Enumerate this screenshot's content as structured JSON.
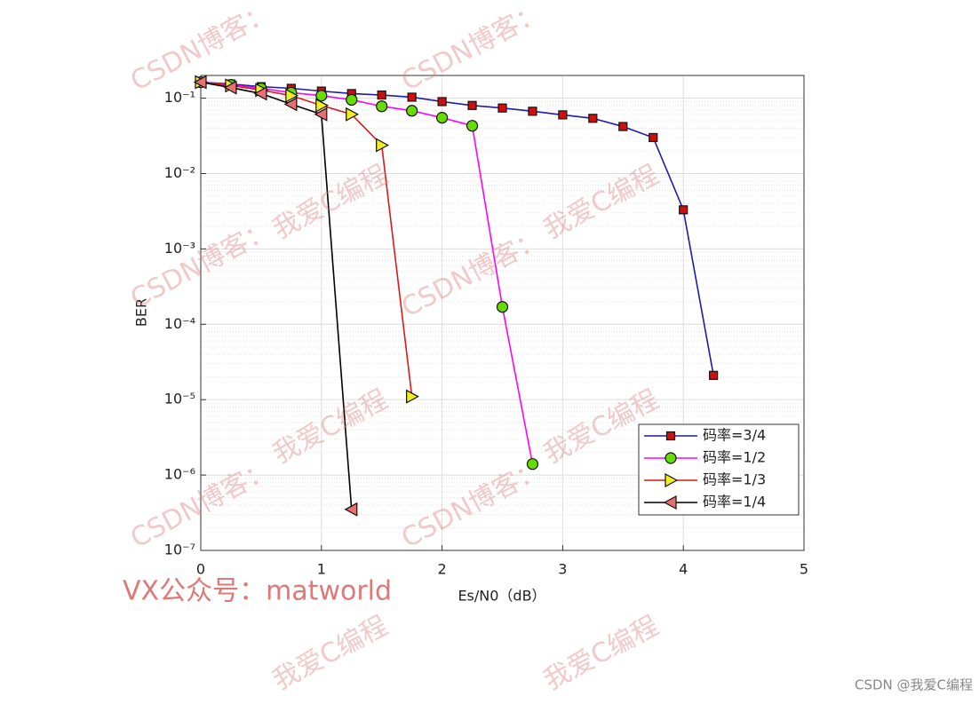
{
  "chart_data": {
    "type": "line",
    "x_label": "Es/N0（dB）",
    "y_label": "BER",
    "log_y": true,
    "grid": true,
    "minor_grid": true,
    "legend_position": "lower right",
    "xlim": [
      0,
      5
    ],
    "xticks": [
      0,
      1,
      2,
      3,
      4,
      5
    ],
    "ylim": [
      1e-07,
      0.2
    ],
    "yticks": [
      {
        "value": 1e-07,
        "label": "10⁻⁷"
      },
      {
        "value": 1e-06,
        "label": "10⁻⁶"
      },
      {
        "value": 1e-05,
        "label": "10⁻⁵"
      },
      {
        "value": 0.0001,
        "label": "10⁻⁴"
      },
      {
        "value": 0.001,
        "label": "10⁻³"
      },
      {
        "value": 0.01,
        "label": "10⁻²"
      },
      {
        "value": 0.1,
        "label": "10⁻¹"
      }
    ],
    "series": [
      {
        "name": "码率=3/4",
        "color": "#1c1ca8",
        "marker_color": "#cc1010",
        "marker": "square",
        "x": [
          0,
          0.25,
          0.5,
          0.75,
          1,
          1.25,
          1.5,
          1.75,
          2,
          2.25,
          2.5,
          2.75,
          3,
          3.25,
          3.5,
          3.75,
          4,
          4.25
        ],
        "values": [
          0.163,
          0.154,
          0.142,
          0.135,
          0.124,
          0.115,
          0.11,
          0.103,
          0.09,
          0.08,
          0.074,
          0.067,
          0.06,
          0.054,
          0.042,
          0.03,
          0.0033,
          2.1e-05
        ]
      },
      {
        "name": "码率=1/2",
        "color": "#ff00ff",
        "marker_color": "#66dd00",
        "marker": "circle",
        "x": [
          0,
          0.25,
          0.5,
          0.75,
          1,
          1.25,
          1.5,
          1.75,
          2,
          2.25,
          2.5,
          2.75
        ],
        "values": [
          0.163,
          0.15,
          0.135,
          0.118,
          0.108,
          0.095,
          0.078,
          0.068,
          0.055,
          0.043,
          0.00017,
          1.4e-06
        ]
      },
      {
        "name": "码率=1/3",
        "color": "#dd1818",
        "marker_color": "#f0f020",
        "marker": "triangle-right",
        "x": [
          0,
          0.25,
          0.5,
          0.75,
          1,
          1.25,
          1.5,
          1.75
        ],
        "values": [
          0.163,
          0.147,
          0.128,
          0.108,
          0.08,
          0.061,
          0.0238,
          1.1e-05
        ]
      },
      {
        "name": "码率=1/4",
        "color": "#000000",
        "marker_color": "#e87070",
        "marker": "triangle-left",
        "x": [
          0,
          0.25,
          0.5,
          0.75,
          1,
          1.25
        ],
        "values": [
          0.163,
          0.138,
          0.115,
          0.083,
          0.061,
          3.5e-07
        ]
      }
    ]
  },
  "watermarks": [
    "CSDN博客：",
    "CSDN博客：",
    "CSDN博客：",
    "CSDN博客：",
    "CSDN博客：",
    "CSDN博客：",
    "我爱C编程",
    "我爱C编程",
    "我爱C编程",
    "我爱C编程",
    "我爱C编程",
    "我爱C编程"
  ],
  "wechat_note": "VX公众号：matworld",
  "credit": "CSDN @我爱C编程"
}
